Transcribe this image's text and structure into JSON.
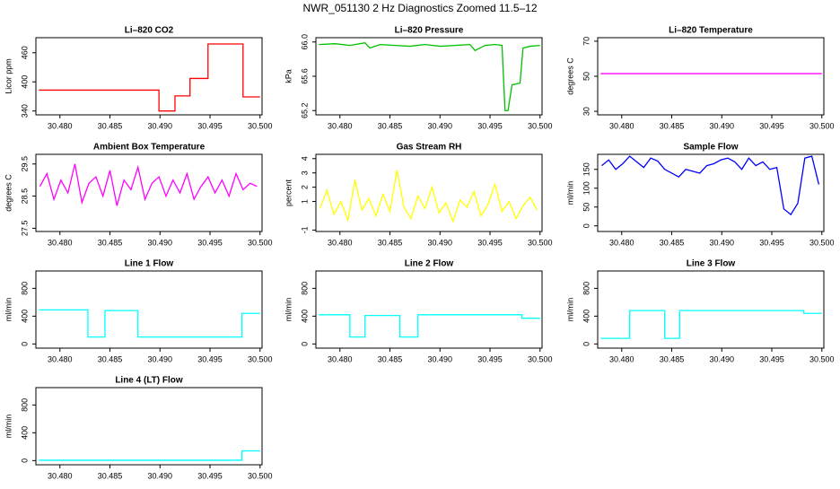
{
  "title": "NWR_051130  2 Hz Diagnostics Zoomed 11.5–12",
  "chart_data": [
    {
      "type": "line",
      "title": "Li–820 CO2",
      "ylabel": "Licor ppm",
      "color": "#ff0000",
      "x": [
        30.4779,
        30.4899,
        30.4899,
        30.4915,
        30.4915,
        30.493,
        30.493,
        30.4948,
        30.4948,
        30.4983,
        30.4983,
        30.5
      ],
      "values": [
        383,
        383,
        340,
        340,
        371,
        371,
        407,
        407,
        478,
        478,
        369,
        369
      ],
      "xlim": [
        30.4776,
        30.5002
      ],
      "ylim": [
        332,
        491
      ],
      "xticks": [
        {
          "value": 30.48,
          "label": "30.480"
        },
        {
          "value": 30.485,
          "label": "30.485"
        },
        {
          "value": 30.49,
          "label": "30.490"
        },
        {
          "value": 30.495,
          "label": "30.495"
        },
        {
          "value": 30.5,
          "label": "30.500"
        }
      ],
      "yticks": [
        340,
        400,
        460
      ]
    },
    {
      "type": "line",
      "title": "Li–820 Pressure",
      "ylabel": "kPa",
      "color": "#00c000",
      "x": [
        30.4779,
        30.4795,
        30.481,
        30.4825,
        30.483,
        30.484,
        30.4855,
        30.487,
        30.4885,
        30.49,
        30.4915,
        30.493,
        30.4935,
        30.4945,
        30.4955,
        30.4962,
        30.4965,
        30.4968,
        30.4972,
        30.498,
        30.4983,
        30.499,
        30.5
      ],
      "values": [
        65.97,
        65.98,
        65.96,
        65.99,
        65.93,
        65.97,
        65.96,
        65.95,
        65.97,
        65.95,
        65.96,
        65.97,
        65.9,
        65.96,
        65.97,
        65.96,
        65.2,
        65.2,
        65.5,
        65.52,
        65.93,
        65.95,
        65.96
      ],
      "xlim": [
        30.4776,
        30.5002
      ],
      "ylim": [
        65.15,
        66.05
      ],
      "xticks": [
        {
          "value": 30.48,
          "label": "30.480"
        },
        {
          "value": 30.485,
          "label": "30.485"
        },
        {
          "value": 30.49,
          "label": "30.490"
        },
        {
          "value": 30.495,
          "label": "30.495"
        },
        {
          "value": 30.5,
          "label": "30.500"
        }
      ],
      "yticks": [
        65.2,
        65.6,
        {
          "value": 66,
          "label": "66.0"
        }
      ]
    },
    {
      "type": "line",
      "title": "Li–820 Temperature",
      "ylabel": "degrees C",
      "color": "#ff00ff",
      "x": [
        30.4779,
        30.5
      ],
      "values": [
        51.5,
        51.5
      ],
      "xlim": [
        30.4776,
        30.5002
      ],
      "ylim": [
        28,
        72
      ],
      "xticks": [
        {
          "value": 30.48,
          "label": "30.480"
        },
        {
          "value": 30.485,
          "label": "30.485"
        },
        {
          "value": 30.49,
          "label": "30.490"
        },
        {
          "value": 30.495,
          "label": "30.495"
        },
        {
          "value": 30.5,
          "label": "30.500"
        }
      ],
      "yticks": [
        30,
        50,
        70
      ]
    },
    {
      "type": "line",
      "title": "Ambient Box Temperature",
      "ylabel": "degrees C",
      "color": "#ff00ff",
      "x": [
        30.478,
        30.4787,
        30.4794,
        30.4801,
        30.4808,
        30.4815,
        30.4822,
        30.4829,
        30.4836,
        30.4843,
        30.485,
        30.4857,
        30.4864,
        30.4871,
        30.4878,
        30.4885,
        30.4892,
        30.4899,
        30.4906,
        30.4913,
        30.492,
        30.4927,
        30.4934,
        30.4941,
        30.4948,
        30.4955,
        30.4962,
        30.4969,
        30.4976,
        30.4983,
        30.499,
        30.4997
      ],
      "values": [
        28.8,
        29.2,
        28.4,
        29.0,
        28.6,
        29.5,
        28.3,
        28.9,
        29.1,
        28.5,
        29.3,
        28.2,
        29.0,
        28.7,
        29.4,
        28.4,
        28.9,
        29.1,
        28.5,
        29.0,
        28.6,
        29.2,
        28.4,
        28.8,
        29.1,
        28.6,
        29.0,
        28.5,
        29.2,
        28.7,
        28.9,
        28.8
      ],
      "xlim": [
        30.4776,
        30.5002
      ],
      "ylim": [
        27.4,
        29.8
      ],
      "xticks": [
        {
          "value": 30.48,
          "label": "30.480"
        },
        {
          "value": 30.485,
          "label": "30.485"
        },
        {
          "value": 30.49,
          "label": "30.490"
        },
        {
          "value": 30.495,
          "label": "30.495"
        },
        {
          "value": 30.5,
          "label": "30.500"
        }
      ],
      "yticks": [
        27.5,
        28.5,
        29.5
      ]
    },
    {
      "type": "line",
      "title": "Gas Stream RH",
      "ylabel": "percent",
      "color": "#ffff00",
      "x": [
        30.478,
        30.4787,
        30.4794,
        30.4801,
        30.4808,
        30.4815,
        30.4822,
        30.4829,
        30.4836,
        30.4843,
        30.485,
        30.4857,
        30.4864,
        30.4871,
        30.4878,
        30.4885,
        30.4892,
        30.4899,
        30.4906,
        30.4913,
        30.492,
        30.4927,
        30.4934,
        30.4941,
        30.4948,
        30.4955,
        30.4962,
        30.4969,
        30.4976,
        30.4983,
        30.499,
        30.4997
      ],
      "values": [
        0.5,
        1.8,
        0.1,
        1.0,
        -0.3,
        2.5,
        0.4,
        1.2,
        0.0,
        1.5,
        0.3,
        3.2,
        0.6,
        -0.2,
        1.4,
        0.5,
        2.0,
        0.2,
        0.9,
        -0.4,
        1.1,
        0.6,
        1.7,
        0.0,
        0.8,
        2.2,
        0.3,
        1.0,
        -0.2,
        0.7,
        1.3,
        0.4
      ],
      "xlim": [
        30.4776,
        30.5002
      ],
      "ylim": [
        -1.1,
        4.3
      ],
      "xticks": [
        {
          "value": 30.48,
          "label": "30.480"
        },
        {
          "value": 30.485,
          "label": "30.485"
        },
        {
          "value": 30.49,
          "label": "30.490"
        },
        {
          "value": 30.495,
          "label": "30.495"
        },
        {
          "value": 30.5,
          "label": "30.500"
        }
      ],
      "yticks": [
        -1,
        1,
        2,
        3,
        4
      ]
    },
    {
      "type": "line",
      "title": "Sample Flow",
      "ylabel": "ml/min",
      "color": "#0000ff",
      "x": [
        30.478,
        30.4787,
        30.4794,
        30.4801,
        30.4808,
        30.4815,
        30.4822,
        30.4829,
        30.4836,
        30.4843,
        30.485,
        30.4857,
        30.4864,
        30.4871,
        30.4878,
        30.4885,
        30.4892,
        30.4899,
        30.4906,
        30.4913,
        30.492,
        30.4927,
        30.4934,
        30.4941,
        30.4948,
        30.4955,
        30.4962,
        30.4969,
        30.4976,
        30.4983,
        30.499,
        30.4997
      ],
      "values": [
        160,
        175,
        150,
        165,
        185,
        170,
        155,
        180,
        172,
        150,
        140,
        130,
        150,
        145,
        140,
        160,
        165,
        175,
        180,
        170,
        150,
        180,
        160,
        170,
        150,
        155,
        45,
        30,
        60,
        180,
        185,
        110
      ],
      "xlim": [
        30.4776,
        30.5002
      ],
      "ylim": [
        -15,
        190
      ],
      "xticks": [
        {
          "value": 30.48,
          "label": "30.480"
        },
        {
          "value": 30.485,
          "label": "30.485"
        },
        {
          "value": 30.49,
          "label": "30.490"
        },
        {
          "value": 30.495,
          "label": "30.495"
        },
        {
          "value": 30.5,
          "label": "30.500"
        }
      ],
      "yticks": [
        0,
        50,
        100,
        150
      ]
    },
    {
      "type": "line",
      "title": "Line 1 Flow",
      "ylabel": "ml/min",
      "color": "#00ffff",
      "x": [
        30.4779,
        30.4828,
        30.4828,
        30.4845,
        30.4845,
        30.4878,
        30.4878,
        30.4982,
        30.4982,
        30.5
      ],
      "values": [
        490,
        490,
        100,
        100,
        480,
        480,
        100,
        100,
        440,
        440
      ],
      "xlim": [
        30.4776,
        30.5002
      ],
      "ylim": [
        -60,
        1050
      ],
      "xticks": [
        {
          "value": 30.48,
          "label": "30.480"
        },
        {
          "value": 30.485,
          "label": "30.485"
        },
        {
          "value": 30.49,
          "label": "30.490"
        },
        {
          "value": 30.495,
          "label": "30.495"
        },
        {
          "value": 30.5,
          "label": "30.500"
        }
      ],
      "yticks": [
        0,
        400,
        800
      ]
    },
    {
      "type": "line",
      "title": "Line 2 Flow",
      "ylabel": "ml/min",
      "color": "#00ffff",
      "x": [
        30.4779,
        30.481,
        30.481,
        30.4825,
        30.4825,
        30.486,
        30.486,
        30.4878,
        30.4878,
        30.4982,
        30.4982,
        30.5
      ],
      "values": [
        420,
        420,
        100,
        100,
        410,
        410,
        100,
        100,
        420,
        420,
        370,
        370
      ],
      "xlim": [
        30.4776,
        30.5002
      ],
      "ylim": [
        -60,
        1050
      ],
      "xticks": [
        {
          "value": 30.48,
          "label": "30.480"
        },
        {
          "value": 30.485,
          "label": "30.485"
        },
        {
          "value": 30.49,
          "label": "30.490"
        },
        {
          "value": 30.495,
          "label": "30.495"
        },
        {
          "value": 30.5,
          "label": "30.500"
        }
      ],
      "yticks": [
        0,
        400,
        800
      ]
    },
    {
      "type": "line",
      "title": "Line 3 Flow",
      "ylabel": "ml/min",
      "color": "#00ffff",
      "x": [
        30.4779,
        30.4808,
        30.4808,
        30.4843,
        30.4843,
        30.4858,
        30.4858,
        30.4982,
        30.4982,
        30.5
      ],
      "values": [
        80,
        80,
        480,
        480,
        80,
        80,
        480,
        480,
        440,
        440
      ],
      "xlim": [
        30.4776,
        30.5002
      ],
      "ylim": [
        -60,
        1050
      ],
      "xticks": [
        {
          "value": 30.48,
          "label": "30.480"
        },
        {
          "value": 30.485,
          "label": "30.485"
        },
        {
          "value": 30.49,
          "label": "30.490"
        },
        {
          "value": 30.495,
          "label": "30.495"
        },
        {
          "value": 30.5,
          "label": "30.500"
        }
      ],
      "yticks": [
        0,
        400,
        800
      ]
    },
    {
      "type": "line",
      "title": "Line 4 (LT) Flow",
      "ylabel": "ml/min",
      "color": "#00ffff",
      "x": [
        30.4779,
        30.4982,
        30.4982,
        30.5
      ],
      "values": [
        5,
        5,
        140,
        140
      ],
      "xlim": [
        30.4776,
        30.5002
      ],
      "ylim": [
        -60,
        1050
      ],
      "xticks": [
        {
          "value": 30.48,
          "label": "30.480"
        },
        {
          "value": 30.485,
          "label": "30.485"
        },
        {
          "value": 30.49,
          "label": "30.490"
        },
        {
          "value": 30.495,
          "label": "30.495"
        },
        {
          "value": 30.5,
          "label": "30.500"
        }
      ],
      "yticks": [
        0,
        400,
        800
      ]
    }
  ]
}
